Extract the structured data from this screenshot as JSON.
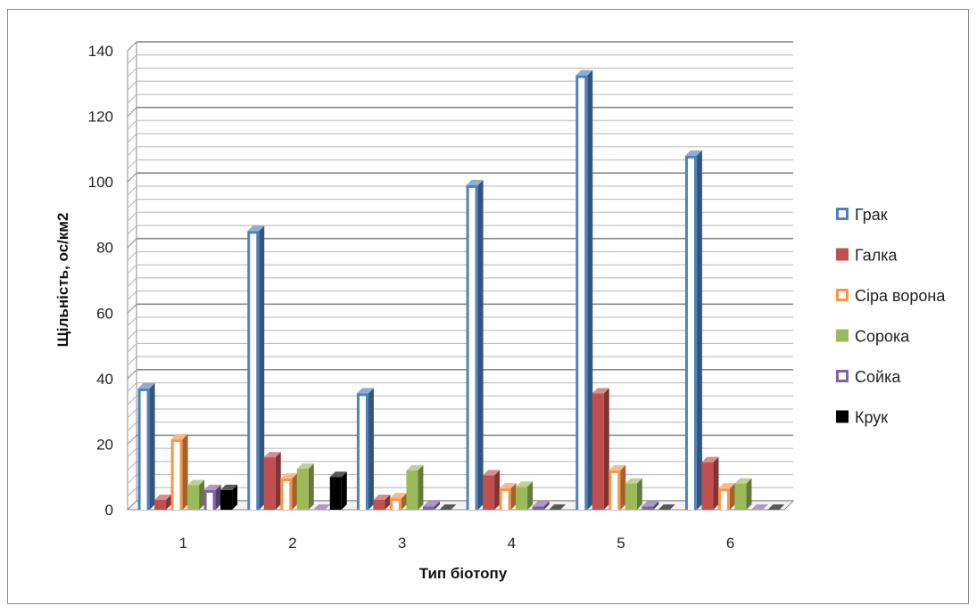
{
  "chart_data": {
    "type": "bar",
    "style": "3d-clustered-column",
    "xlabel": "Тип біотопу",
    "ylabel": "Щільність, ос/км2",
    "ylim": [
      0,
      140
    ],
    "major_ticks": [
      0,
      20,
      40,
      60,
      80,
      100,
      120,
      140
    ],
    "grid": true,
    "legend_position": "right",
    "categories": [
      "1",
      "2",
      "3",
      "4",
      "5",
      "6"
    ],
    "series": [
      {
        "name": "Грак",
        "color": "#4f81bd",
        "style": "outline",
        "values": [
          37,
          85,
          35.5,
          99,
          132.5,
          108
        ]
      },
      {
        "name": "Галка",
        "color": "#c0504d",
        "style": "solid",
        "values": [
          3,
          16,
          3,
          10.5,
          35.5,
          14.5
        ]
      },
      {
        "name": "Сіра ворона",
        "color": "#f79646",
        "style": "outline",
        "values": [
          21.5,
          9.5,
          3.5,
          6.5,
          12,
          6.5
        ]
      },
      {
        "name": "Сорока",
        "color": "#9bbb59",
        "style": "solid",
        "values": [
          7.5,
          12.5,
          12,
          7,
          8,
          8
        ]
      },
      {
        "name": "Сойка",
        "color": "#8064a2",
        "style": "outline",
        "values": [
          6,
          0,
          1,
          1,
          1,
          0
        ]
      },
      {
        "name": "Крук",
        "color": "#000000",
        "style": "solid",
        "values": [
          6,
          10,
          0,
          0,
          0,
          0
        ]
      }
    ]
  }
}
